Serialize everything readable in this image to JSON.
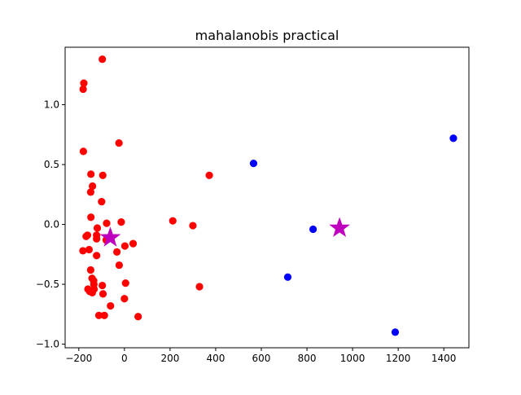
{
  "chart_data": {
    "type": "scatter",
    "title": "mahalanobis practical",
    "xlabel": "",
    "ylabel": "",
    "xlim": [
      -260,
      1510
    ],
    "ylim": [
      -1.03,
      1.48
    ],
    "x_ticks": [
      -200,
      0,
      200,
      400,
      600,
      800,
      1000,
      1200,
      1400
    ],
    "x_tick_labels": [
      "−200",
      "0",
      "200",
      "400",
      "600",
      "800",
      "1000",
      "1200",
      "1400"
    ],
    "y_ticks": [
      -1.0,
      -0.5,
      0.0,
      0.5,
      1.0
    ],
    "y_tick_labels": [
      "−1.0",
      "−0.5",
      "0.0",
      "0.5",
      "1.0"
    ],
    "grid": false,
    "legend": "none",
    "series": [
      {
        "color": "#ff0000",
        "marker": "circle",
        "points": [
          [
            -97,
            1.38
          ],
          [
            -178,
            1.18
          ],
          [
            -181,
            1.13
          ],
          [
            -180,
            0.61
          ],
          [
            -24,
            0.68
          ],
          [
            -147,
            0.42
          ],
          [
            -95,
            0.41
          ],
          [
            372,
            0.41
          ],
          [
            -140,
            0.32
          ],
          [
            -148,
            0.27
          ],
          [
            -100,
            0.19
          ],
          [
            -147,
            0.06
          ],
          [
            212,
            0.03
          ],
          [
            -14,
            0.02
          ],
          [
            -78,
            0.01
          ],
          [
            300,
            -0.01
          ],
          [
            -119,
            -0.03
          ],
          [
            -162,
            -0.09
          ],
          [
            -168,
            -0.1
          ],
          [
            -122,
            -0.09
          ],
          [
            -122,
            -0.12
          ],
          [
            -80,
            -0.13
          ],
          [
            38,
            -0.16
          ],
          [
            2,
            -0.18
          ],
          [
            -182,
            -0.22
          ],
          [
            -155,
            -0.21
          ],
          [
            -33,
            -0.23
          ],
          [
            -122,
            -0.26
          ],
          [
            -23,
            -0.34
          ],
          [
            -148,
            -0.38
          ],
          [
            -142,
            -0.45
          ],
          [
            -135,
            -0.47
          ],
          [
            -134,
            -0.5
          ],
          [
            5,
            -0.49
          ],
          [
            -97,
            -0.51
          ],
          [
            -160,
            -0.54
          ],
          [
            -133,
            -0.54
          ],
          [
            329,
            -0.52
          ],
          [
            -152,
            -0.56
          ],
          [
            -141,
            -0.57
          ],
          [
            -94,
            -0.58
          ],
          [
            0,
            -0.62
          ],
          [
            -61,
            -0.68
          ],
          [
            -112,
            -0.76
          ],
          [
            -88,
            -0.76
          ],
          [
            60,
            -0.77
          ]
        ]
      },
      {
        "color": "#0000ff",
        "marker": "circle",
        "points": [
          [
            566,
            0.51
          ],
          [
            1442,
            0.72
          ],
          [
            827,
            -0.04
          ],
          [
            716,
            -0.44
          ],
          [
            1187,
            -0.9
          ]
        ]
      },
      {
        "color": "#bf00bf",
        "marker": "star",
        "points": [
          [
            -62,
            -0.11
          ],
          [
            943,
            -0.03
          ]
        ]
      }
    ]
  }
}
